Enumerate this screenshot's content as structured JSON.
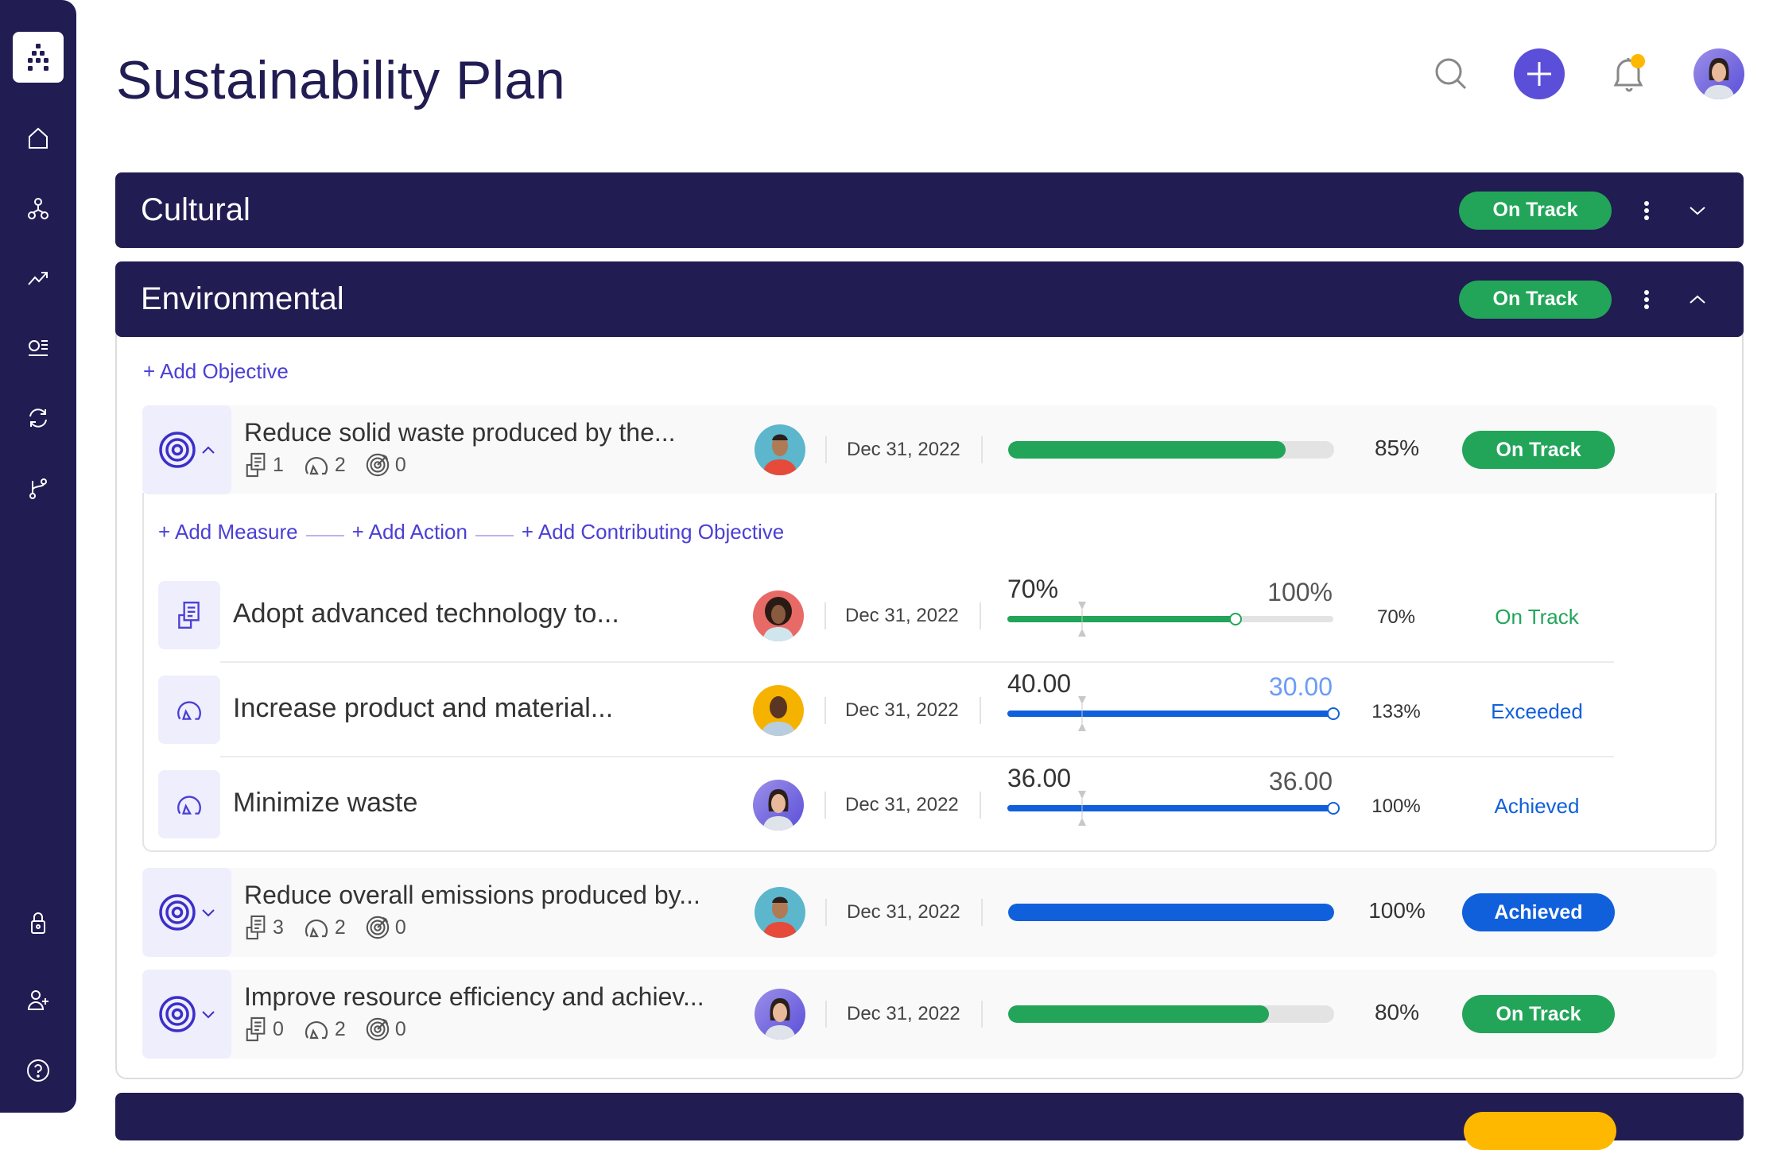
{
  "page": {
    "title": "Sustainability Plan"
  },
  "sidebar": {
    "logo": "app-logo",
    "items": [
      {
        "icon": "home-icon"
      },
      {
        "icon": "hierarchy-icon"
      },
      {
        "icon": "trend-icon"
      },
      {
        "icon": "list-icon"
      },
      {
        "icon": "refresh-icon"
      },
      {
        "icon": "route-icon"
      }
    ],
    "bottom_items": [
      {
        "icon": "lock-icon"
      },
      {
        "icon": "add-user-icon"
      },
      {
        "icon": "help-icon"
      }
    ]
  },
  "colors": {
    "navy": "#211c52",
    "green": "#22a559",
    "blue": "#1060dc",
    "accent": "#5b4fd9",
    "yellow": "#ffb800"
  },
  "categories": [
    {
      "name": "Cultural",
      "status": "On Track",
      "expanded": false
    },
    {
      "name": "Environmental",
      "status": "On Track",
      "expanded": true
    }
  ],
  "environmental": {
    "add_objective": "+ Add Objective",
    "objectives": [
      {
        "title": "Reduce solid waste produced by the...",
        "measures": "1",
        "actions": "2",
        "contributing": "0",
        "date": "Dec 31, 2022",
        "progress": 85,
        "progress_label": "85%",
        "status": "On Track",
        "status_color": "green",
        "expanded": true
      },
      {
        "title": "Reduce overall emissions produced by...",
        "measures": "3",
        "actions": "2",
        "contributing": "0",
        "date": "Dec 31, 2022",
        "progress": 100,
        "progress_label": "100%",
        "status": "Achieved",
        "status_color": "blue",
        "expanded": false
      },
      {
        "title": "Improve resource efficiency and achiev...",
        "measures": "0",
        "actions": "2",
        "contributing": "0",
        "date": "Dec 31, 2022",
        "progress": 80,
        "progress_label": "80%",
        "status": "On Track",
        "status_color": "green",
        "expanded": false
      }
    ],
    "add_links": {
      "measure": "+ Add Measure",
      "action": "+ Add Action",
      "contributing": "+ Add Contributing Objective"
    },
    "children": [
      {
        "type": "measure",
        "title": "Adopt advanced technology to...",
        "date": "Dec 31, 2022",
        "current": "70%",
        "target": "100%",
        "progress": 70,
        "percent": "70%",
        "status": "On Track",
        "status_color": "#22a559",
        "target_color": "#555555"
      },
      {
        "type": "action",
        "title": "Increase product and material...",
        "date": "Dec 31, 2022",
        "current": "40.00",
        "target": "30.00",
        "progress": 100,
        "percent": "133%",
        "status": "Exceeded",
        "status_color": "#1060dc",
        "target_color": "#6c9cf5"
      },
      {
        "type": "action",
        "title": "Minimize waste",
        "date": "Dec 31, 2022",
        "current": "36.00",
        "target": "36.00",
        "progress": 100,
        "percent": "100%",
        "status": "Achieved",
        "status_color": "#1060dc",
        "target_color": "#555555"
      }
    ]
  }
}
